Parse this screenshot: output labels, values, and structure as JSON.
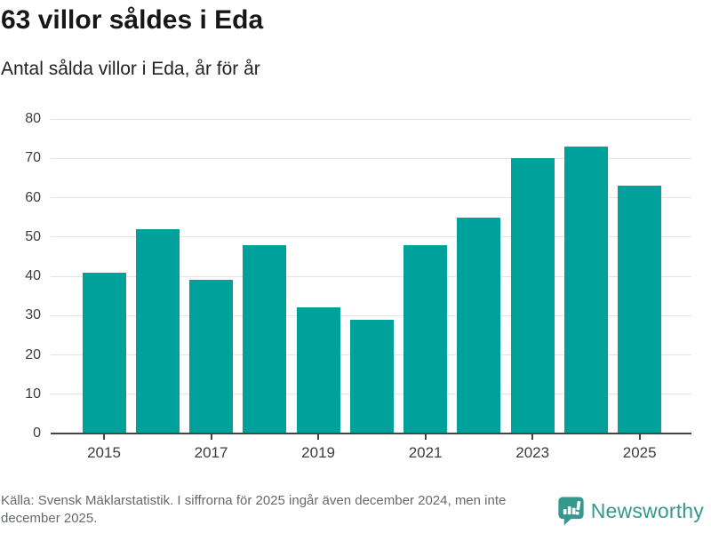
{
  "header": {
    "title": "63 villor såldes i Eda",
    "subtitle": "Antal sålda villor i Eda, år för år"
  },
  "chart_data": {
    "type": "bar",
    "categories": [
      "2015",
      "2016",
      "2017",
      "2018",
      "2019",
      "2020",
      "2021",
      "2022",
      "2023",
      "2024",
      "2025"
    ],
    "values": [
      41,
      52,
      39,
      48,
      32,
      29,
      48,
      55,
      70,
      73,
      63
    ],
    "title": "63 villor såldes i Eda",
    "subtitle": "Antal sålda villor i Eda, år för år",
    "xlabel": "",
    "ylabel": "",
    "ylim": [
      0,
      80
    ],
    "y_ticks": [
      0,
      10,
      20,
      30,
      40,
      50,
      60,
      70,
      80
    ],
    "x_tick_indices": [
      0,
      2,
      4,
      6,
      8,
      10
    ],
    "grid": true,
    "legend": false,
    "bar_color": "#00a19b"
  },
  "footer": {
    "source": "Källa: Svensk Mäklarstatistik. I siffrorna för 2025 ingår även december 2024, men inte december 2025."
  },
  "brand": {
    "name": "Newsworthy",
    "color": "#35988f"
  }
}
